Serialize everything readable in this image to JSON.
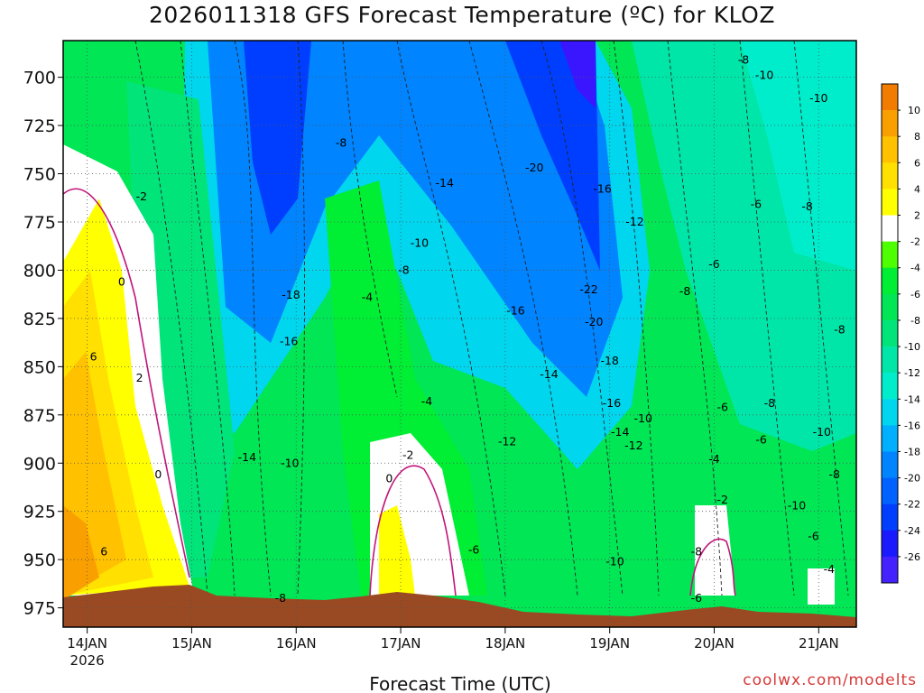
{
  "chart_data": {
    "type": "heatmap",
    "title": "2026011318 GFS Forecast Temperature (ºC) for KLOZ",
    "xlabel": "Forecast Time (UTC)",
    "ylabel": "",
    "x_ticks": [
      {
        "label": "14JAN",
        "sub": "2026",
        "day": 0
      },
      {
        "label": "15JAN",
        "sub": "",
        "day": 1
      },
      {
        "label": "16JAN",
        "sub": "",
        "day": 2
      },
      {
        "label": "17JAN",
        "sub": "",
        "day": 3
      },
      {
        "label": "18JAN",
        "sub": "",
        "day": 4
      },
      {
        "label": "19JAN",
        "sub": "",
        "day": 5
      },
      {
        "label": "20JAN",
        "sub": "",
        "day": 6
      },
      {
        "label": "21JAN",
        "sub": "",
        "day": 7
      }
    ],
    "x_range_days": [
      -0.23,
      7.36
    ],
    "y_ticks": [
      "700",
      "725",
      "750",
      "775",
      "800",
      "825",
      "850",
      "875",
      "900",
      "925",
      "950",
      "975"
    ],
    "y_range_hpa": [
      681,
      985
    ],
    "grid": true,
    "colorbar": {
      "placement": "right",
      "labels": [
        "10",
        "8",
        "6",
        "4",
        "2",
        "-2",
        "-4",
        "-6",
        "-8",
        "-10",
        "-12",
        "-14",
        "-16",
        "-18",
        "-20",
        "-22",
        "-24",
        "-26"
      ],
      "colors": [
        "#f27c00",
        "#f9a000",
        "#ffc100",
        "#ffe000",
        "#ffff00",
        "#ffffff",
        "#4dff00",
        "#00ee33",
        "#00e655",
        "#00e47a",
        "#00e6a8",
        "#00edcc",
        "#00d6ee",
        "#00b0ff",
        "#0084ff",
        "#0062ff",
        "#003eff",
        "#1a1aff",
        "#4422ff"
      ]
    },
    "ground_color": "#9a4a22",
    "contour_labels": [
      {
        "t": "-8",
        "d": 6.28,
        "p": 691
      },
      {
        "t": "-10",
        "d": 6.48,
        "p": 699
      },
      {
        "t": "-10",
        "d": 7.0,
        "p": 711
      },
      {
        "t": "-8",
        "d": 2.43,
        "p": 734
      },
      {
        "t": "-2",
        "d": 0.52,
        "p": 762
      },
      {
        "t": "-14",
        "d": 3.42,
        "p": 755
      },
      {
        "t": "-20",
        "d": 4.28,
        "p": 747
      },
      {
        "t": "-16",
        "d": 4.93,
        "p": 758
      },
      {
        "t": "-6",
        "d": 6.4,
        "p": 766
      },
      {
        "t": "-8",
        "d": 6.89,
        "p": 767
      },
      {
        "t": "-12",
        "d": 5.24,
        "p": 775
      },
      {
        "t": "-10",
        "d": 3.18,
        "p": 786
      },
      {
        "t": "-8",
        "d": 3.03,
        "p": 800
      },
      {
        "t": "0",
        "d": 0.33,
        "p": 806
      },
      {
        "t": "-6",
        "d": 6.0,
        "p": 797
      },
      {
        "t": "-22",
        "d": 4.8,
        "p": 810
      },
      {
        "t": "-18",
        "d": 1.95,
        "p": 813
      },
      {
        "t": "-4",
        "d": 2.68,
        "p": 814
      },
      {
        "t": "-8",
        "d": 5.72,
        "p": 811
      },
      {
        "t": "-16",
        "d": 4.1,
        "p": 821
      },
      {
        "t": "-20",
        "d": 4.85,
        "p": 827
      },
      {
        "t": "-8",
        "d": 7.2,
        "p": 831
      },
      {
        "t": "-16",
        "d": 1.93,
        "p": 837
      },
      {
        "t": "6",
        "d": 0.06,
        "p": 845
      },
      {
        "t": "2",
        "d": 0.5,
        "p": 856
      },
      {
        "t": "-14",
        "d": 4.42,
        "p": 854
      },
      {
        "t": "-18",
        "d": 5.0,
        "p": 847
      },
      {
        "t": "-4",
        "d": 3.25,
        "p": 868
      },
      {
        "t": "-16",
        "d": 5.02,
        "p": 869
      },
      {
        "t": "-6",
        "d": 6.08,
        "p": 871
      },
      {
        "t": "-8",
        "d": 6.53,
        "p": 869
      },
      {
        "t": "-10",
        "d": 5.32,
        "p": 877
      },
      {
        "t": "-14",
        "d": 5.1,
        "p": 884
      },
      {
        "t": "-12",
        "d": 4.02,
        "p": 889
      },
      {
        "t": "-12",
        "d": 5.23,
        "p": 891
      },
      {
        "t": "-6",
        "d": 6.45,
        "p": 888
      },
      {
        "t": "-10",
        "d": 7.03,
        "p": 884
      },
      {
        "t": "-14",
        "d": 1.53,
        "p": 897
      },
      {
        "t": "-10",
        "d": 1.94,
        "p": 900
      },
      {
        "t": "-2",
        "d": 3.07,
        "p": 896
      },
      {
        "t": "-4",
        "d": 6.0,
        "p": 898
      },
      {
        "t": "0",
        "d": 0.68,
        "p": 906
      },
      {
        "t": "0",
        "d": 2.89,
        "p": 908
      },
      {
        "t": "-8",
        "d": 7.15,
        "p": 906
      },
      {
        "t": "-2",
        "d": 6.08,
        "p": 919
      },
      {
        "t": "-10",
        "d": 6.79,
        "p": 922
      },
      {
        "t": "-6",
        "d": 6.95,
        "p": 938
      },
      {
        "t": "6",
        "d": 0.16,
        "p": 946
      },
      {
        "t": "-6",
        "d": 3.7,
        "p": 945
      },
      {
        "t": "-8",
        "d": 5.83,
        "p": 946
      },
      {
        "t": "-10",
        "d": 5.05,
        "p": 951
      },
      {
        "t": "-4",
        "d": 7.1,
        "p": 955
      },
      {
        "t": "-8",
        "d": 1.85,
        "p": 970
      },
      {
        "t": "-6",
        "d": 5.83,
        "p": 970
      }
    ]
  },
  "watermark": "coolwx.com/modelts"
}
